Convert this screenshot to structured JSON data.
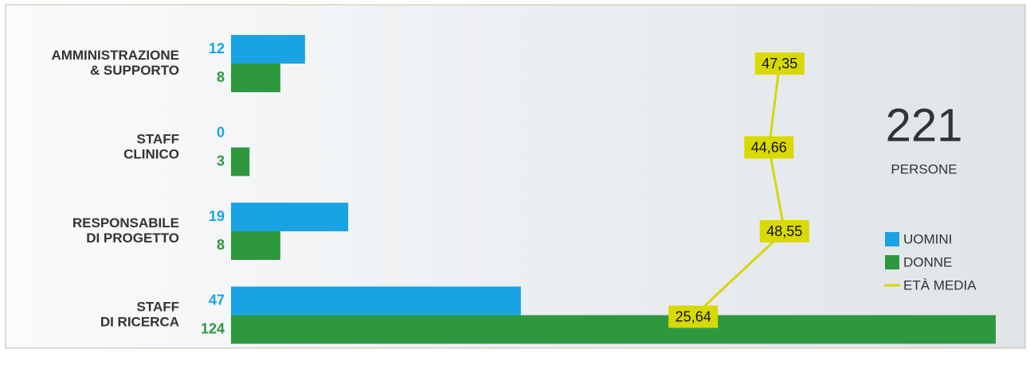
{
  "chart_data": {
    "type": "bar",
    "categories": [
      [
        "AMMINISTRAZIONE",
        "& SUPPORTO"
      ],
      [
        "STAFF",
        "CLINICO"
      ],
      [
        "RESPONSABILE",
        "DI PROGETTO"
      ],
      [
        "STAFF",
        "DI RICERCA"
      ]
    ],
    "series": [
      {
        "name": "UOMINI",
        "color": "#1aa3e3",
        "values": [
          12,
          0,
          19,
          47
        ]
      },
      {
        "name": "DONNE",
        "color": "#2e983e",
        "values": [
          8,
          3,
          8,
          124
        ]
      },
      {
        "name": "ETÀ MEDIA",
        "type": "line",
        "color": "#d6d60a",
        "values": [
          47.35,
          44.66,
          48.55,
          25.64
        ],
        "value_labels": [
          "47,35",
          "44,66",
          "48,55",
          "25,64"
        ]
      }
    ],
    "total": 221,
    "total_label": "PERSONE"
  }
}
